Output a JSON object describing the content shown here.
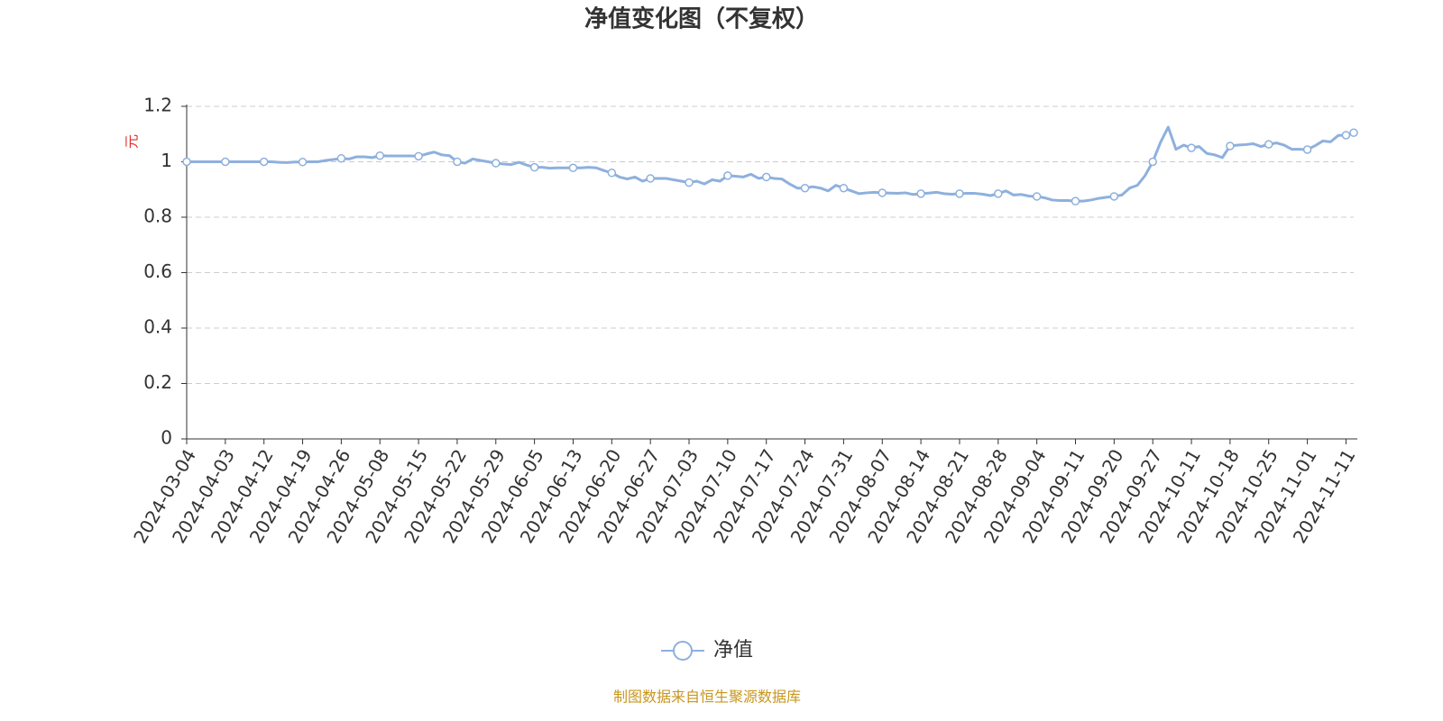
{
  "chart_data": {
    "type": "line",
    "title": "净值变化图（不复权）",
    "y_label": "元",
    "categories": [
      "2024-03-04",
      null,
      null,
      null,
      null,
      "2024-04-03",
      null,
      null,
      null,
      null,
      "2024-04-12",
      null,
      null,
      null,
      null,
      "2024-04-19",
      null,
      null,
      null,
      null,
      "2024-04-26",
      null,
      null,
      null,
      null,
      "2024-05-08",
      null,
      null,
      null,
      null,
      "2024-05-15",
      null,
      null,
      null,
      null,
      "2024-05-22",
      null,
      null,
      null,
      null,
      "2024-05-29",
      null,
      null,
      null,
      null,
      "2024-06-05",
      null,
      null,
      null,
      null,
      "2024-06-13",
      null,
      null,
      null,
      null,
      "2024-06-20",
      null,
      null,
      null,
      null,
      "2024-06-27",
      null,
      null,
      null,
      null,
      "2024-07-03",
      null,
      null,
      null,
      null,
      "2024-07-10",
      null,
      null,
      null,
      null,
      "2024-07-17",
      null,
      null,
      null,
      null,
      "2024-07-24",
      null,
      null,
      null,
      null,
      "2024-07-31",
      null,
      null,
      null,
      null,
      "2024-08-07",
      null,
      null,
      null,
      null,
      "2024-08-14",
      null,
      null,
      null,
      null,
      "2024-08-21",
      null,
      null,
      null,
      null,
      "2024-08-28",
      null,
      null,
      null,
      null,
      "2024-09-04",
      null,
      null,
      null,
      null,
      "2024-09-11",
      null,
      null,
      null,
      null,
      "2024-09-20",
      null,
      null,
      null,
      null,
      "2024-09-27",
      null,
      null,
      null,
      null,
      "2024-10-11",
      null,
      null,
      null,
      null,
      "2024-10-18",
      null,
      null,
      null,
      null,
      "2024-10-25",
      null,
      null,
      null,
      null,
      "2024-11-01",
      null,
      null,
      null,
      null,
      "2024-11-11",
      null
    ],
    "series": [
      {
        "name": "净值",
        "color": "#8eb0dd",
        "values": [
          1.0,
          1.0,
          1.0,
          1.0,
          1.0,
          1.0,
          1.0,
          1.0,
          1.0,
          1.0,
          1.0,
          1.0,
          0.998,
          0.997,
          0.999,
          0.999,
          1.0,
          1.0,
          1.005,
          1.008,
          1.012,
          1.01,
          1.018,
          1.018,
          1.015,
          1.022,
          1.021,
          1.021,
          1.021,
          1.021,
          1.02,
          1.028,
          1.035,
          1.025,
          1.022,
          1.0,
          0.995,
          1.01,
          1.005,
          1.0,
          0.995,
          0.992,
          0.99,
          0.998,
          0.988,
          0.98,
          0.98,
          0.977,
          0.978,
          0.978,
          0.978,
          0.978,
          0.98,
          0.978,
          0.968,
          0.96,
          0.945,
          0.938,
          0.945,
          0.93,
          0.94,
          0.94,
          0.94,
          0.935,
          0.93,
          0.925,
          0.93,
          0.92,
          0.935,
          0.93,
          0.95,
          0.948,
          0.945,
          0.955,
          0.94,
          0.945,
          0.94,
          0.938,
          0.92,
          0.905,
          0.905,
          0.91,
          0.905,
          0.895,
          0.915,
          0.905,
          0.895,
          0.885,
          0.888,
          0.89,
          0.888,
          0.887,
          0.886,
          0.888,
          0.882,
          0.885,
          0.887,
          0.89,
          0.885,
          0.883,
          0.885,
          0.886,
          0.886,
          0.883,
          0.878,
          0.885,
          0.895,
          0.88,
          0.882,
          0.876,
          0.875,
          0.87,
          0.862,
          0.86,
          0.86,
          0.858,
          0.858,
          0.862,
          0.868,
          0.872,
          0.875,
          0.88,
          0.905,
          0.915,
          0.95,
          1.0,
          1.07,
          1.125,
          1.045,
          1.06,
          1.05,
          1.055,
          1.03,
          1.025,
          1.015,
          1.057,
          1.06,
          1.062,
          1.065,
          1.055,
          1.063,
          1.068,
          1.06,
          1.045,
          1.045,
          1.044,
          1.058,
          1.075,
          1.072,
          1.095,
          1.096,
          1.105
        ]
      }
    ],
    "ylim": [
      0,
      1.2
    ],
    "yticks": [
      0,
      0.2,
      0.4,
      0.6,
      0.8,
      1,
      1.2
    ],
    "grid": true
  },
  "footer": "制图数据来自恒生聚源数据库"
}
